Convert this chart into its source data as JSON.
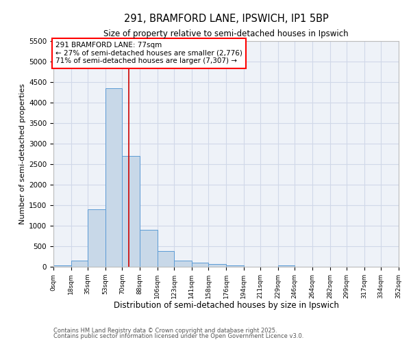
{
  "title": "291, BRAMFORD LANE, IPSWICH, IP1 5BP",
  "subtitle": "Size of property relative to semi-detached houses in Ipswich",
  "xlabel": "Distribution of semi-detached houses by size in Ipswich",
  "ylabel": "Number of semi-detached properties",
  "property_size": 77,
  "annotation_line1": "291 BRAMFORD LANE: 77sqm",
  "annotation_line2": "← 27% of semi-detached houses are smaller (2,776)",
  "annotation_line3": "71% of semi-detached houses are larger (7,307) →",
  "bin_edges": [
    0,
    18,
    35,
    53,
    70,
    88,
    106,
    123,
    141,
    158,
    176,
    194,
    211,
    229,
    246,
    264,
    282,
    299,
    317,
    334,
    352
  ],
  "bar_heights": [
    30,
    150,
    1400,
    4350,
    2700,
    900,
    390,
    150,
    100,
    60,
    40,
    0,
    0,
    35,
    0,
    0,
    0,
    0,
    0,
    0
  ],
  "bar_color": "#c8d8e8",
  "bar_edge_color": "#5b9bd5",
  "red_line_color": "#cc0000",
  "grid_color": "#d0d8e8",
  "background_color": "#eef2f8",
  "ylim": [
    0,
    5500
  ],
  "yticks": [
    0,
    500,
    1000,
    1500,
    2000,
    2500,
    3000,
    3500,
    4000,
    4500,
    5000,
    5500
  ],
  "footnote1": "Contains HM Land Registry data © Crown copyright and database right 2025.",
  "footnote2": "Contains public sector information licensed under the Open Government Licence v3.0."
}
